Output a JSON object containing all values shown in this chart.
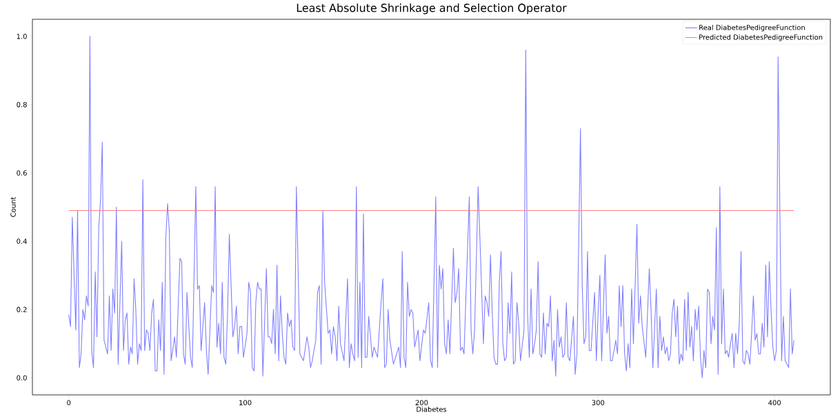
{
  "chart_data": {
    "type": "line",
    "title": "Least Absolute Shrinkage and Selection Operator",
    "xlabel": "Diabetes",
    "ylabel": "Count",
    "xlim": [
      -20.6,
      431.6
    ],
    "ylim": [
      -0.05,
      1.05
    ],
    "xticks": [
      0,
      100,
      200,
      300,
      400
    ],
    "yticks": [
      {
        "value": 0,
        "label": "0.0"
      },
      {
        "value": 0.2,
        "label": "0.2"
      },
      {
        "value": 0.4,
        "label": "0.4"
      },
      {
        "value": 0.6,
        "label": "0.6"
      },
      {
        "value": 0.8,
        "label": "0.8"
      },
      {
        "value": 1.0,
        "label": "1.0"
      }
    ],
    "legend": "top right",
    "series": [
      {
        "name": "Real DiabetesPedigreeFunction",
        "color": "#7f7fff",
        "x": [
          0,
          1,
          2,
          4,
          5,
          6,
          7,
          8,
          9,
          10,
          11,
          12,
          13,
          14,
          15,
          16,
          17,
          18,
          19,
          20,
          22,
          23,
          24,
          25,
          26,
          27,
          28,
          30,
          31,
          32,
          33,
          34,
          35,
          36,
          37,
          38,
          39,
          40,
          41,
          42,
          43,
          44,
          45,
          46,
          47,
          48,
          49,
          50,
          51,
          52,
          53,
          54,
          55,
          56,
          57,
          58,
          60,
          61,
          63,
          64,
          65,
          66,
          67,
          69,
          70,
          72,
          73,
          74,
          75,
          77,
          78,
          79,
          81,
          82,
          83,
          84,
          85,
          86,
          87,
          88,
          89,
          90,
          91,
          93,
          94,
          95,
          96,
          97,
          98,
          99,
          101,
          102,
          103,
          104,
          105,
          106,
          107,
          108,
          109,
          110,
          112,
          113,
          114,
          115,
          116,
          117,
          118,
          119,
          120,
          121,
          122,
          123,
          124,
          125,
          126,
          127,
          128,
          129,
          131,
          133,
          135,
          136,
          137,
          138,
          140,
          141,
          142,
          143,
          144,
          145,
          147,
          148,
          149,
          150,
          151,
          152,
          153,
          154,
          156,
          158,
          159,
          160,
          161,
          162,
          163,
          164,
          165,
          166,
          167,
          168,
          169,
          170,
          172,
          173,
          175,
          177,
          178,
          179,
          180,
          181,
          182,
          184,
          187,
          188,
          189,
          190,
          191,
          192,
          193,
          194,
          195,
          196,
          198,
          199,
          201,
          202,
          204,
          205,
          206,
          208,
          209,
          210,
          211,
          212,
          213,
          214,
          215,
          216,
          218,
          219,
          220,
          221,
          222,
          223,
          224,
          227,
          228,
          229,
          230,
          232,
          233,
          235,
          236,
          237,
          238,
          239,
          240,
          241,
          242,
          243,
          244,
          245,
          246,
          247,
          248,
          249,
          250,
          251,
          252,
          253,
          254,
          255,
          256,
          258,
          259,
          260,
          261,
          262,
          263,
          264,
          265,
          266,
          267,
          268,
          269,
          270,
          271,
          272,
          273,
          274,
          275,
          276,
          277,
          278,
          279,
          280,
          281,
          282,
          283,
          284,
          286,
          287,
          288,
          290,
          291,
          292,
          293,
          294,
          295,
          296,
          298,
          299,
          300,
          301,
          302,
          304,
          305,
          306,
          307,
          308,
          310,
          311,
          312,
          313,
          314,
          315,
          316,
          317,
          318,
          319,
          320,
          322,
          323,
          324,
          325,
          327,
          329,
          330,
          331,
          333,
          334,
          335,
          336,
          337,
          338,
          339,
          340,
          341,
          342,
          343,
          344,
          345,
          346,
          347,
          348,
          349,
          350,
          351,
          352,
          353,
          354,
          355,
          356,
          357,
          358,
          359,
          360,
          361,
          362,
          363,
          364,
          365,
          366,
          367,
          368,
          369,
          370,
          371,
          372,
          373,
          374,
          375,
          376,
          377,
          378,
          379,
          380,
          381,
          382,
          383,
          384,
          385,
          386,
          387,
          388,
          389,
          390,
          391,
          392,
          393,
          394,
          395,
          396,
          397,
          398,
          399,
          400,
          401,
          402,
          404,
          405,
          406,
          408,
          409,
          410,
          411
        ],
        "values": [
          0.185,
          0.15,
          0.47,
          0.14,
          0.49,
          0.03,
          0.07,
          0.2,
          0.17,
          0.24,
          0.21,
          1.0,
          0.08,
          0.03,
          0.31,
          0.12,
          0.44,
          0.52,
          0.69,
          0.11,
          0.07,
          0.24,
          0.08,
          0.26,
          0.19,
          0.5,
          0.04,
          0.4,
          0.08,
          0.17,
          0.19,
          0.04,
          0.09,
          0.07,
          0.29,
          0.2,
          0.04,
          0.1,
          0.08,
          0.58,
          0.08,
          0.14,
          0.13,
          0.08,
          0.19,
          0.23,
          0.02,
          0.02,
          0.17,
          0.08,
          0.28,
          0.01,
          0.41,
          0.51,
          0.43,
          0.05,
          0.12,
          0.06,
          0.35,
          0.34,
          0.07,
          0.04,
          0.25,
          0.06,
          0.03,
          0.56,
          0.26,
          0.27,
          0.08,
          0.22,
          0.08,
          0.01,
          0.27,
          0.25,
          0.56,
          0.09,
          0.16,
          0.07,
          0.28,
          0.06,
          0.04,
          0.19,
          0.42,
          0.12,
          0.15,
          0.21,
          0.07,
          0.15,
          0.15,
          0.06,
          0.13,
          0.28,
          0.25,
          0.03,
          0.02,
          0.22,
          0.28,
          0.26,
          0.26,
          0.005,
          0.32,
          0.12,
          0.12,
          0.1,
          0.2,
          0.07,
          0.33,
          0.05,
          0.24,
          0.13,
          0.06,
          0.04,
          0.19,
          0.15,
          0.17,
          0.09,
          0.08,
          0.56,
          0.07,
          0.05,
          0.12,
          0.09,
          0.03,
          0.05,
          0.11,
          0.25,
          0.27,
          0.04,
          0.49,
          0.28,
          0.13,
          0.14,
          0.07,
          0.15,
          0.12,
          0.05,
          0.21,
          0.1,
          0.05,
          0.29,
          0.03,
          0.1,
          0.07,
          0.05,
          0.56,
          0.06,
          0.28,
          0.03,
          0.48,
          0.06,
          0.06,
          0.18,
          0.06,
          0.09,
          0.06,
          0.22,
          0.29,
          0.03,
          0.04,
          0.2,
          0.11,
          0.04,
          0.09,
          0.03,
          0.37,
          0.06,
          0.03,
          0.28,
          0.18,
          0.2,
          0.19,
          0.09,
          0.14,
          0.05,
          0.14,
          0.13,
          0.22,
          0.05,
          0.03,
          0.53,
          0.03,
          0.33,
          0.26,
          0.32,
          0.1,
          0.07,
          0.17,
          0.07,
          0.38,
          0.22,
          0.25,
          0.32,
          0.08,
          0.09,
          0.07,
          0.53,
          0.14,
          0.07,
          0.14,
          0.56,
          0.41,
          0.1,
          0.24,
          0.22,
          0.18,
          0.36,
          0.19,
          0.06,
          0.04,
          0.04,
          0.28,
          0.37,
          0.1,
          0.05,
          0.06,
          0.22,
          0.13,
          0.31,
          0.04,
          0.05,
          0.22,
          0.16,
          0.05,
          0.14,
          0.96,
          0.19,
          0.06,
          0.26,
          0.07,
          0.1,
          0.14,
          0.34,
          0.07,
          0.06,
          0.19,
          0.07,
          0.16,
          0.15,
          0.24,
          0.05,
          0.11,
          0.005,
          0.2,
          0.09,
          0.12,
          0.06,
          0.07,
          0.22,
          0.06,
          0.05,
          0.18,
          0.01,
          0.07,
          0.73,
          0.27,
          0.1,
          0.12,
          0.37,
          0.08,
          0.08,
          0.25,
          0.05,
          0.19,
          0.3,
          0.05,
          0.36,
          0.13,
          0.18,
          0.05,
          0.05,
          0.11,
          0.07,
          0.27,
          0.15,
          0.27,
          0.07,
          0.02,
          0.1,
          0.03,
          0.26,
          0.1,
          0.45,
          0.16,
          0.24,
          0.15,
          0.06,
          0.32,
          0.2,
          0.03,
          0.26,
          0.03,
          0.18,
          0.08,
          0.12,
          0.07,
          0.09,
          0.05,
          0.07,
          0.19,
          0.23,
          0.12,
          0.21,
          0.04,
          0.07,
          0.05,
          0.23,
          0.08,
          0.25,
          0.09,
          0.15,
          0.05,
          0.2,
          0.14,
          0.21,
          0.06,
          0.0,
          0.08,
          0.03,
          0.26,
          0.25,
          0.1,
          0.18,
          0.14,
          0.44,
          0.01,
          0.56,
          0.1,
          0.26,
          0.07,
          0.08,
          0.06,
          0.1,
          0.13,
          0.03,
          0.13,
          0.07,
          0.16,
          0.37,
          0.05,
          0.04,
          0.08,
          0.07,
          0.04,
          0.13,
          0.24,
          0.11,
          0.13,
          0.07,
          0.07,
          0.16,
          0.09,
          0.33,
          0.12,
          0.34,
          0.2,
          0.09,
          0.05,
          0.08,
          0.94,
          0.05,
          0.18,
          0.05,
          0.03,
          0.26,
          0.07,
          0.11
        ]
      },
      {
        "name": "Predicted DiabetesPedigreeFunction",
        "color": "#ff7f7f",
        "x": [
          0,
          411
        ],
        "values": [
          0.49,
          0.49
        ]
      }
    ]
  }
}
